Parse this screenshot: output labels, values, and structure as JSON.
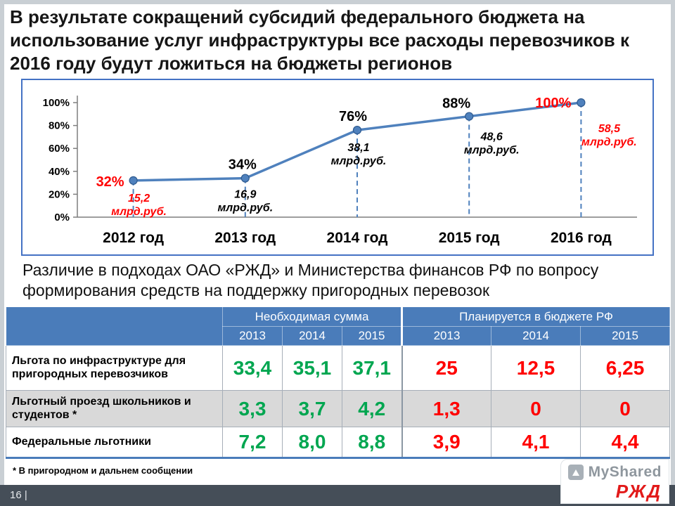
{
  "slide": {
    "title": "В результате сокращений субсидий федерального бюджета на использование услуг инфраструктуры все расходы перевозчиков к 2016 году будут ложиться на бюджеты регионов",
    "subtitle": "Различие в подходах ОАО «РЖД» и Министерства финансов РФ по вопросу формирования средств на поддержку пригородных перевозок",
    "footnote": "* В пригородном и дальнем сообщении",
    "page_number": "16 |"
  },
  "colors": {
    "accent_blue": "#4A7CBA",
    "chart_border": "#4472C4",
    "line_blue": "#4F81BD",
    "green": "#00A650",
    "red": "#FF0000",
    "band_gray": "#D9D9D9",
    "footer_bar": "#454E58",
    "rzd_red": "#E21A1A"
  },
  "chart_data": {
    "type": "line",
    "title": "",
    "xlabel": "",
    "ylabel": "",
    "x_categories": [
      "2012 год",
      "2013 год",
      "2014 год",
      "2015 год",
      "2016 год"
    ],
    "series": [
      {
        "values": [
          32,
          34,
          76,
          88,
          100
        ]
      }
    ],
    "point_labels": [
      "32%",
      "34%",
      "76%",
      "88%",
      "100%"
    ],
    "value_labels": [
      "15,2",
      "16,9",
      "38,1",
      "48,6",
      "58,5"
    ],
    "value_unit": "млрд.руб.",
    "percent_label_colors": [
      "#FF0000",
      "#000000",
      "#000000",
      "#000000",
      "#FF0000"
    ],
    "value_label_colors": [
      "#FF0000",
      "#000000",
      "#000000",
      "#000000",
      "#FF0000"
    ],
    "yticks": [
      "100%",
      "80%",
      "60%",
      "40%",
      "20%",
      "0%"
    ],
    "ylim": [
      0,
      100
    ],
    "grid": false,
    "legend": false
  },
  "table": {
    "group_headers": [
      "Необходимая сумма",
      "Планируется в бюджете РФ"
    ],
    "year_headers": [
      "2013",
      "2014",
      "2015",
      "2013",
      "2014",
      "2015"
    ],
    "rows": [
      {
        "label": "Льгота по инфраструктуре для пригородных перевозчиков",
        "needed": [
          "33,4",
          "35,1",
          "37,1"
        ],
        "planned": [
          "25",
          "12,5",
          "6,25"
        ]
      },
      {
        "label": "Льготный проезд школьников и студентов *",
        "needed": [
          "3,3",
          "3,7",
          "4,2"
        ],
        "planned": [
          "1,3",
          "0",
          "0"
        ]
      },
      {
        "label": "Федеральные льготники",
        "needed": [
          "7,2",
          "8,0",
          "8,8"
        ],
        "planned": [
          "3,9",
          "4,1",
          "4,4"
        ]
      }
    ]
  },
  "watermark": {
    "myshared": "MyShared",
    "rzd": "РЖД"
  }
}
